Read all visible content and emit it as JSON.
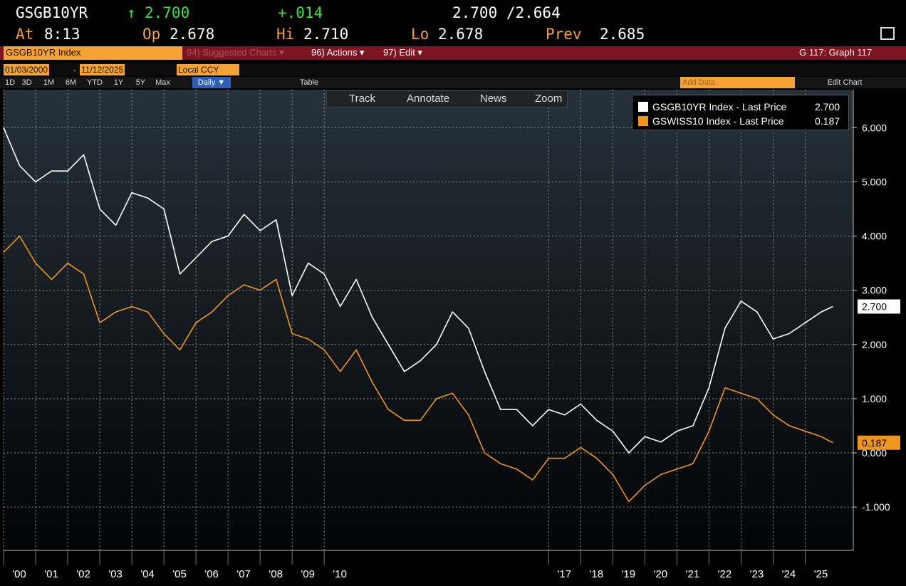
{
  "header": {
    "ticker": "GSGB10YR",
    "arrow": "↑",
    "last": "2.700",
    "change": "+.014",
    "bid_ask": "2.700 /2.664",
    "time_label": "At",
    "time": "8:13",
    "open_label": "Op",
    "open": "2.678",
    "high_label": "Hi",
    "high": "2.710",
    "low_label": "Lo",
    "low": "2.678",
    "prev_label": "Prev",
    "prev": "2.685"
  },
  "menu": {
    "security": "GSGB10YR Index",
    "suggested": "94) Suggested Charts ▾",
    "actions": "96) Actions ▾",
    "edit": "97) Edit ▾",
    "graph": "G 117: Graph 117"
  },
  "range": {
    "start": "01/03/2000",
    "dash": "-",
    "end": "11/12/2025",
    "currency": "Local CCY"
  },
  "periods": [
    "1D",
    "3D",
    "1M",
    "6M",
    "YTD",
    "1Y",
    "5Y",
    "Max"
  ],
  "frequency": "Daily ▼",
  "table": "Table",
  "add_data": "Add Data",
  "edit_chart": "Edit Chart",
  "tools": [
    "Track",
    "Annotate",
    "News",
    "Zoom"
  ],
  "chart_data": {
    "type": "line",
    "x": [
      2000.0,
      2000.5,
      2001.0,
      2001.5,
      2002.0,
      2002.5,
      2003.0,
      2003.5,
      2004.0,
      2004.5,
      2005.0,
      2005.5,
      2006.0,
      2006.5,
      2007.0,
      2007.5,
      2008.0,
      2008.5,
      2009.0,
      2009.5,
      2010.0,
      2010.5,
      2011.0,
      2011.5,
      2012.0,
      2012.5,
      2013.0,
      2013.5,
      2014.0,
      2014.5,
      2015.0,
      2015.5,
      2016.0,
      2016.5,
      2017.0,
      2017.5,
      2018.0,
      2018.5,
      2019.0,
      2019.5,
      2020.0,
      2020.5,
      2021.0,
      2021.5,
      2022.0,
      2022.5,
      2023.0,
      2023.5,
      2024.0,
      2024.5,
      2025.0,
      2025.5,
      2025.86
    ],
    "series": [
      {
        "name": "GSGB10YR Index - Last Price",
        "last_label": "2.700",
        "color": "#ffffff",
        "values": [
          6.0,
          5.3,
          5.0,
          5.2,
          5.2,
          5.5,
          4.5,
          4.2,
          4.8,
          4.7,
          4.5,
          3.3,
          3.6,
          3.9,
          4.0,
          4.4,
          4.1,
          4.3,
          2.9,
          3.5,
          3.3,
          2.7,
          3.2,
          2.5,
          2.0,
          1.5,
          1.7,
          2.0,
          2.6,
          2.3,
          1.5,
          0.8,
          0.8,
          0.5,
          0.8,
          0.7,
          0.9,
          0.6,
          0.4,
          0.0,
          0.3,
          0.2,
          0.4,
          0.5,
          1.2,
          2.3,
          2.8,
          2.6,
          2.1,
          2.2,
          2.4,
          2.6,
          2.7
        ]
      },
      {
        "name": "GSWISS10 Index - Last Price",
        "last_label": "0.187",
        "color": "#f0961e",
        "values": [
          3.7,
          4.0,
          3.5,
          3.2,
          3.5,
          3.3,
          2.4,
          2.6,
          2.7,
          2.6,
          2.2,
          1.9,
          2.4,
          2.6,
          2.9,
          3.1,
          3.0,
          3.2,
          2.2,
          2.1,
          1.9,
          1.5,
          1.9,
          1.3,
          0.8,
          0.6,
          0.6,
          1.0,
          1.1,
          0.7,
          0.0,
          -0.2,
          -0.3,
          -0.5,
          -0.1,
          -0.1,
          0.1,
          -0.1,
          -0.4,
          -0.9,
          -0.6,
          -0.4,
          -0.3,
          -0.2,
          0.4,
          1.2,
          1.1,
          1.0,
          0.7,
          0.5,
          0.4,
          0.3,
          0.187
        ]
      }
    ],
    "xlim": [
      2000,
      2026.5
    ],
    "xticks": [
      {
        "value": 2000,
        "label": "'00"
      },
      {
        "value": 2001,
        "label": "'01"
      },
      {
        "value": 2002,
        "label": "'02"
      },
      {
        "value": 2003,
        "label": "'03"
      },
      {
        "value": 2004,
        "label": "'04"
      },
      {
        "value": 2005,
        "label": "'05"
      },
      {
        "value": 2006,
        "label": "'06"
      },
      {
        "value": 2007,
        "label": "'07"
      },
      {
        "value": 2008,
        "label": "'08"
      },
      {
        "value": 2009,
        "label": "'09"
      },
      {
        "value": 2010,
        "label": "'10"
      },
      {
        "value": 2017,
        "label": "'17"
      },
      {
        "value": 2018,
        "label": "'18"
      },
      {
        "value": 2019,
        "label": "'19"
      },
      {
        "value": 2020,
        "label": "'20"
      },
      {
        "value": 2021,
        "label": "'21"
      },
      {
        "value": 2022,
        "label": "'22"
      },
      {
        "value": 2023,
        "label": "'23"
      },
      {
        "value": 2024,
        "label": "'24"
      },
      {
        "value": 2025,
        "label": "'25"
      }
    ],
    "ylim": [
      -1.8,
      6.7
    ],
    "yticks": [
      {
        "value": -1,
        "label": "-1.000"
      },
      {
        "value": 0,
        "label": "0.000"
      },
      {
        "value": 1,
        "label": "1.000"
      },
      {
        "value": 2,
        "label": "2.000"
      },
      {
        "value": 3,
        "label": "3.000"
      },
      {
        "value": 4,
        "label": "4.000"
      },
      {
        "value": 5,
        "label": "5.000"
      },
      {
        "value": 6,
        "label": "6.000"
      }
    ],
    "grid": true,
    "legend": "top-right"
  }
}
